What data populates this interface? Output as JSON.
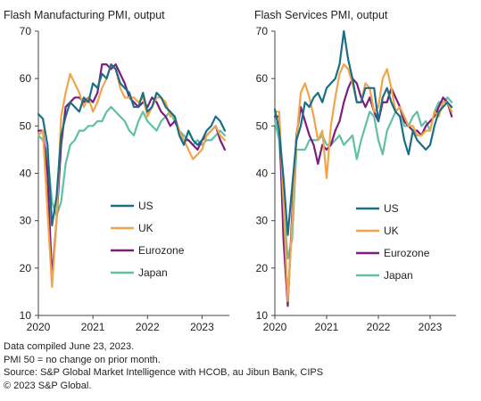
{
  "footnotes": [
    "Data compiled June 23, 2023.",
    "PMI 50 = no change on prior month.",
    "Source: S&P Global Market Intelligence with HCOB, au Jibun Bank, CIPS",
    "© 2023 S&P Global."
  ],
  "colors": {
    "US": "#1a6f85",
    "UK": "#f0a54a",
    "Eurozone": "#7a1f7a",
    "Japan": "#5fc0a5",
    "axis": "#444444"
  },
  "chart_data": [
    {
      "type": "line",
      "title": "Flash Manufacturing PMI, output",
      "xlabel": "",
      "ylabel": "",
      "xlim": [
        2020.0,
        2023.5
      ],
      "ylim": [
        10,
        70
      ],
      "yticks": [
        10,
        20,
        30,
        40,
        50,
        60,
        70
      ],
      "xticks": [
        2020,
        2021,
        2022,
        2023
      ],
      "xticklabels": [
        "2020",
        "2021",
        "2022",
        "2023"
      ],
      "legend": "bottom-right",
      "grid": false,
      "x": [
        2020.0,
        2020.083,
        2020.167,
        2020.25,
        2020.333,
        2020.417,
        2020.5,
        2020.583,
        2020.667,
        2020.75,
        2020.833,
        2020.917,
        2021.0,
        2021.083,
        2021.167,
        2021.25,
        2021.333,
        2021.417,
        2021.5,
        2021.583,
        2021.667,
        2021.75,
        2021.833,
        2021.917,
        2022.0,
        2022.083,
        2022.167,
        2022.25,
        2022.333,
        2022.417,
        2022.5,
        2022.583,
        2022.667,
        2022.75,
        2022.833,
        2022.917,
        2023.0,
        2023.083,
        2023.167,
        2023.25,
        2023.333,
        2023.417
      ],
      "series": [
        {
          "name": "US",
          "values": [
            52.5,
            51.5,
            46,
            29,
            35,
            48,
            52,
            55,
            54,
            53,
            56,
            55,
            59,
            58,
            61,
            60,
            63,
            62,
            59,
            58,
            57,
            54,
            54,
            57,
            53,
            54,
            57,
            56,
            54,
            53,
            52,
            48,
            46,
            49,
            47,
            46,
            47,
            49,
            50,
            52,
            51,
            49
          ]
        },
        {
          "name": "UK",
          "values": [
            48,
            49,
            32,
            16,
            30,
            52,
            57,
            61,
            59,
            57,
            54,
            56,
            53,
            55,
            58,
            60,
            63,
            62,
            58,
            56,
            56,
            56,
            55,
            56,
            52,
            54,
            56,
            56,
            55,
            52,
            52,
            49,
            47,
            45,
            43,
            44,
            45,
            48,
            49,
            50,
            48,
            47
          ]
        },
        {
          "name": "Eurozone",
          "values": [
            49,
            49,
            40,
            18,
            30,
            46,
            54,
            55,
            56,
            56,
            55,
            56,
            55,
            57,
            63,
            63,
            62,
            63,
            61,
            59,
            56,
            55,
            54,
            55,
            54,
            56,
            55,
            53,
            52,
            50,
            51,
            49,
            47,
            47,
            46,
            45,
            47,
            48,
            49,
            50,
            47,
            45
          ]
        },
        {
          "name": "Japan",
          "values": [
            48,
            47,
            44,
            34,
            31,
            34,
            42,
            46,
            47,
            49,
            49,
            50,
            50,
            51,
            51,
            53,
            54,
            53,
            52,
            51,
            49,
            48,
            51,
            53,
            51,
            50,
            49,
            51,
            52,
            53,
            51,
            49,
            48,
            47,
            46,
            47,
            46,
            47,
            47,
            48,
            49,
            48
          ]
        }
      ]
    },
    {
      "type": "line",
      "title": "Flash Services PMI, output",
      "xlabel": "",
      "ylabel": "",
      "xlim": [
        2020.0,
        2023.5
      ],
      "ylim": [
        10,
        70
      ],
      "yticks": [
        10,
        20,
        30,
        40,
        50,
        60,
        70
      ],
      "xticks": [
        2020,
        2021,
        2022,
        2023
      ],
      "xticklabels": [
        "2020",
        "2021",
        "2022",
        "2023"
      ],
      "legend": "bottom-right",
      "grid": false,
      "x": [
        2020.0,
        2020.083,
        2020.167,
        2020.25,
        2020.333,
        2020.417,
        2020.5,
        2020.583,
        2020.667,
        2020.75,
        2020.833,
        2020.917,
        2021.0,
        2021.083,
        2021.167,
        2021.25,
        2021.333,
        2021.417,
        2021.5,
        2021.583,
        2021.667,
        2021.75,
        2021.833,
        2021.917,
        2022.0,
        2022.083,
        2022.167,
        2022.25,
        2022.333,
        2022.417,
        2022.5,
        2022.583,
        2022.667,
        2022.75,
        2022.833,
        2022.917,
        2023.0,
        2023.083,
        2023.167,
        2023.25,
        2023.333,
        2023.417
      ],
      "series": [
        {
          "name": "US",
          "values": [
            53.5,
            49,
            39,
            27,
            37,
            47,
            50,
            55,
            54,
            56,
            57,
            55,
            58,
            59,
            60,
            63,
            70,
            64,
            60,
            55,
            55,
            58,
            58,
            58,
            51,
            56,
            58,
            55,
            53,
            52,
            47,
            44,
            49,
            47,
            46,
            45,
            46,
            50,
            53,
            54,
            55,
            54
          ]
        },
        {
          "name": "UK",
          "values": [
            53,
            53,
            34,
            13,
            29,
            47,
            57,
            59,
            56,
            52,
            47,
            49,
            39,
            50,
            56,
            61,
            63,
            62,
            59,
            55,
            55,
            59,
            58,
            53,
            54,
            60,
            62,
            58,
            53,
            54,
            52,
            50,
            50,
            48,
            48,
            49,
            49,
            53,
            52,
            55,
            55,
            53
          ]
        },
        {
          "name": "Eurozone",
          "values": [
            52,
            52,
            26,
            12,
            31,
            48,
            54,
            51,
            48,
            46,
            42,
            46,
            45,
            46,
            49,
            51,
            55,
            58,
            60,
            59,
            56,
            54,
            56,
            53,
            51,
            55,
            55,
            58,
            56,
            54,
            51,
            50,
            49,
            49,
            48,
            50,
            51,
            52,
            54,
            56,
            55,
            52
          ]
        },
        {
          "name": "Japan",
          "values": [
            51,
            47,
            33,
            22,
            26,
            45,
            45,
            45,
            47,
            47,
            47,
            48,
            46,
            46,
            47,
            48,
            46,
            47,
            48,
            43,
            47,
            50,
            53,
            52,
            47,
            44,
            49,
            51,
            53,
            54,
            50,
            50,
            52,
            53,
            50,
            51,
            49,
            53,
            55,
            55,
            56,
            55
          ]
        }
      ]
    }
  ]
}
